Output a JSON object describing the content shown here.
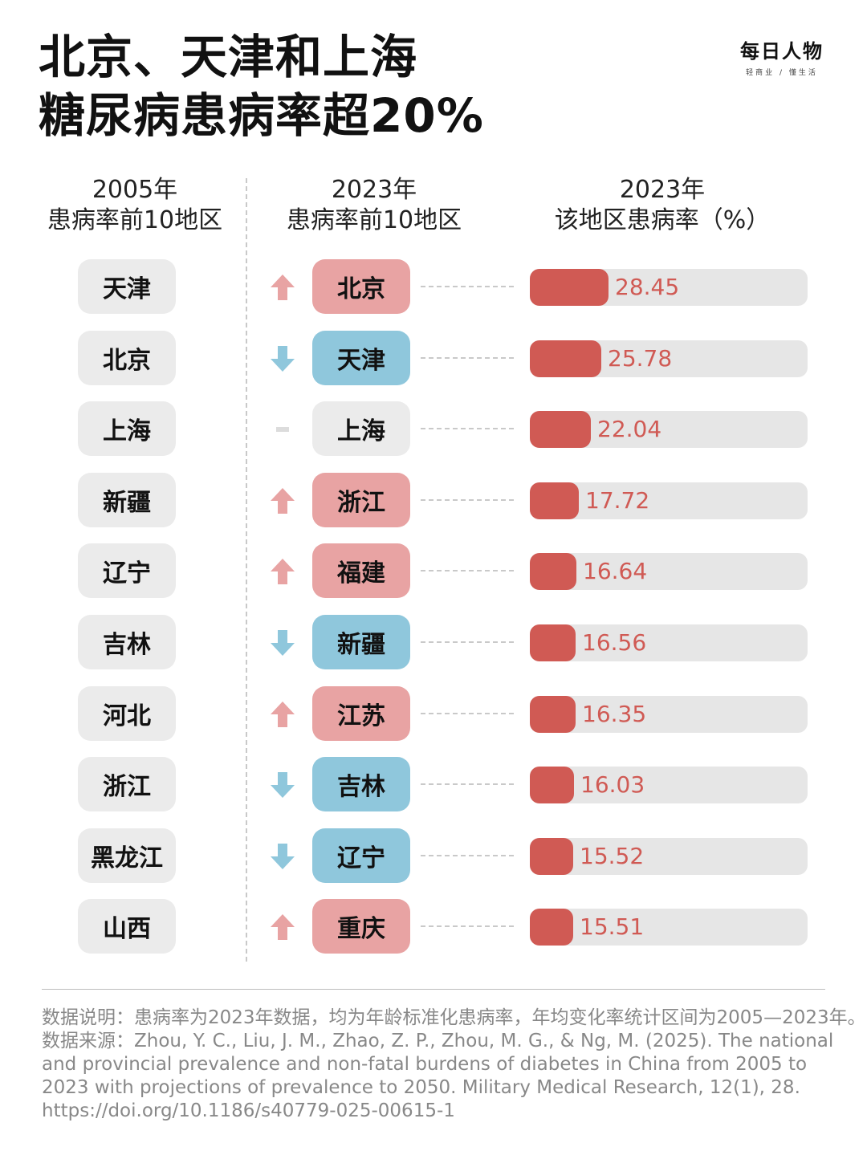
{
  "title_line1": "北京、天津和上海",
  "title_line2": "糖尿病患病率超20%",
  "brand": {
    "name": "每日人物",
    "tagline": "轻商业 / 懂生活"
  },
  "columns": {
    "left": {
      "year": "2005年",
      "label": "患病率前10地区"
    },
    "mid": {
      "year": "2023年",
      "label": "患病率前10地区"
    },
    "right": {
      "year": "2023年",
      "label": "该地区患病率（%）"
    }
  },
  "colors": {
    "up": "#e8a3a3",
    "down": "#8fc7dc",
    "same": "#ebebeb",
    "bar": "#d05a54",
    "track": "#e6e6e6"
  },
  "chart_data": {
    "type": "bar",
    "title": "北京、天津和上海糖尿病患病率超20%",
    "xlabel": "",
    "ylabel": "该地区患病率（%）",
    "ylim": [
      0,
      100
    ],
    "categories_2005": [
      "天津",
      "北京",
      "上海",
      "新疆",
      "辽宁",
      "吉林",
      "河北",
      "浙江",
      "黑龙江",
      "山西"
    ],
    "categories": [
      "北京",
      "天津",
      "上海",
      "浙江",
      "福建",
      "新疆",
      "江苏",
      "吉林",
      "辽宁",
      "重庆"
    ],
    "trend": [
      "up",
      "down",
      "same",
      "up",
      "up",
      "down",
      "up",
      "down",
      "down",
      "up"
    ],
    "values": [
      28.45,
      25.78,
      22.04,
      17.72,
      16.64,
      16.56,
      16.35,
      16.03,
      15.52,
      15.51
    ]
  },
  "footnote": {
    "line1": "数据说明：患病率为2023年数据，均为年龄标准化患病率，年均变化率统计区间为2005—2023年。",
    "line2": "数据来源：Zhou, Y. C., Liu, J. M., Zhao, Z. P., Zhou, M. G., & Ng, M. (2025). The national",
    "line3": "and provincial prevalence and non-fatal burdens of diabetes in China from 2005 to",
    "line4": "2023 with projections of prevalence to 2050. Military Medical Research, 12(1), 28.",
    "line5": "https://doi.org/10.1186/s40779-025-00615-1"
  }
}
